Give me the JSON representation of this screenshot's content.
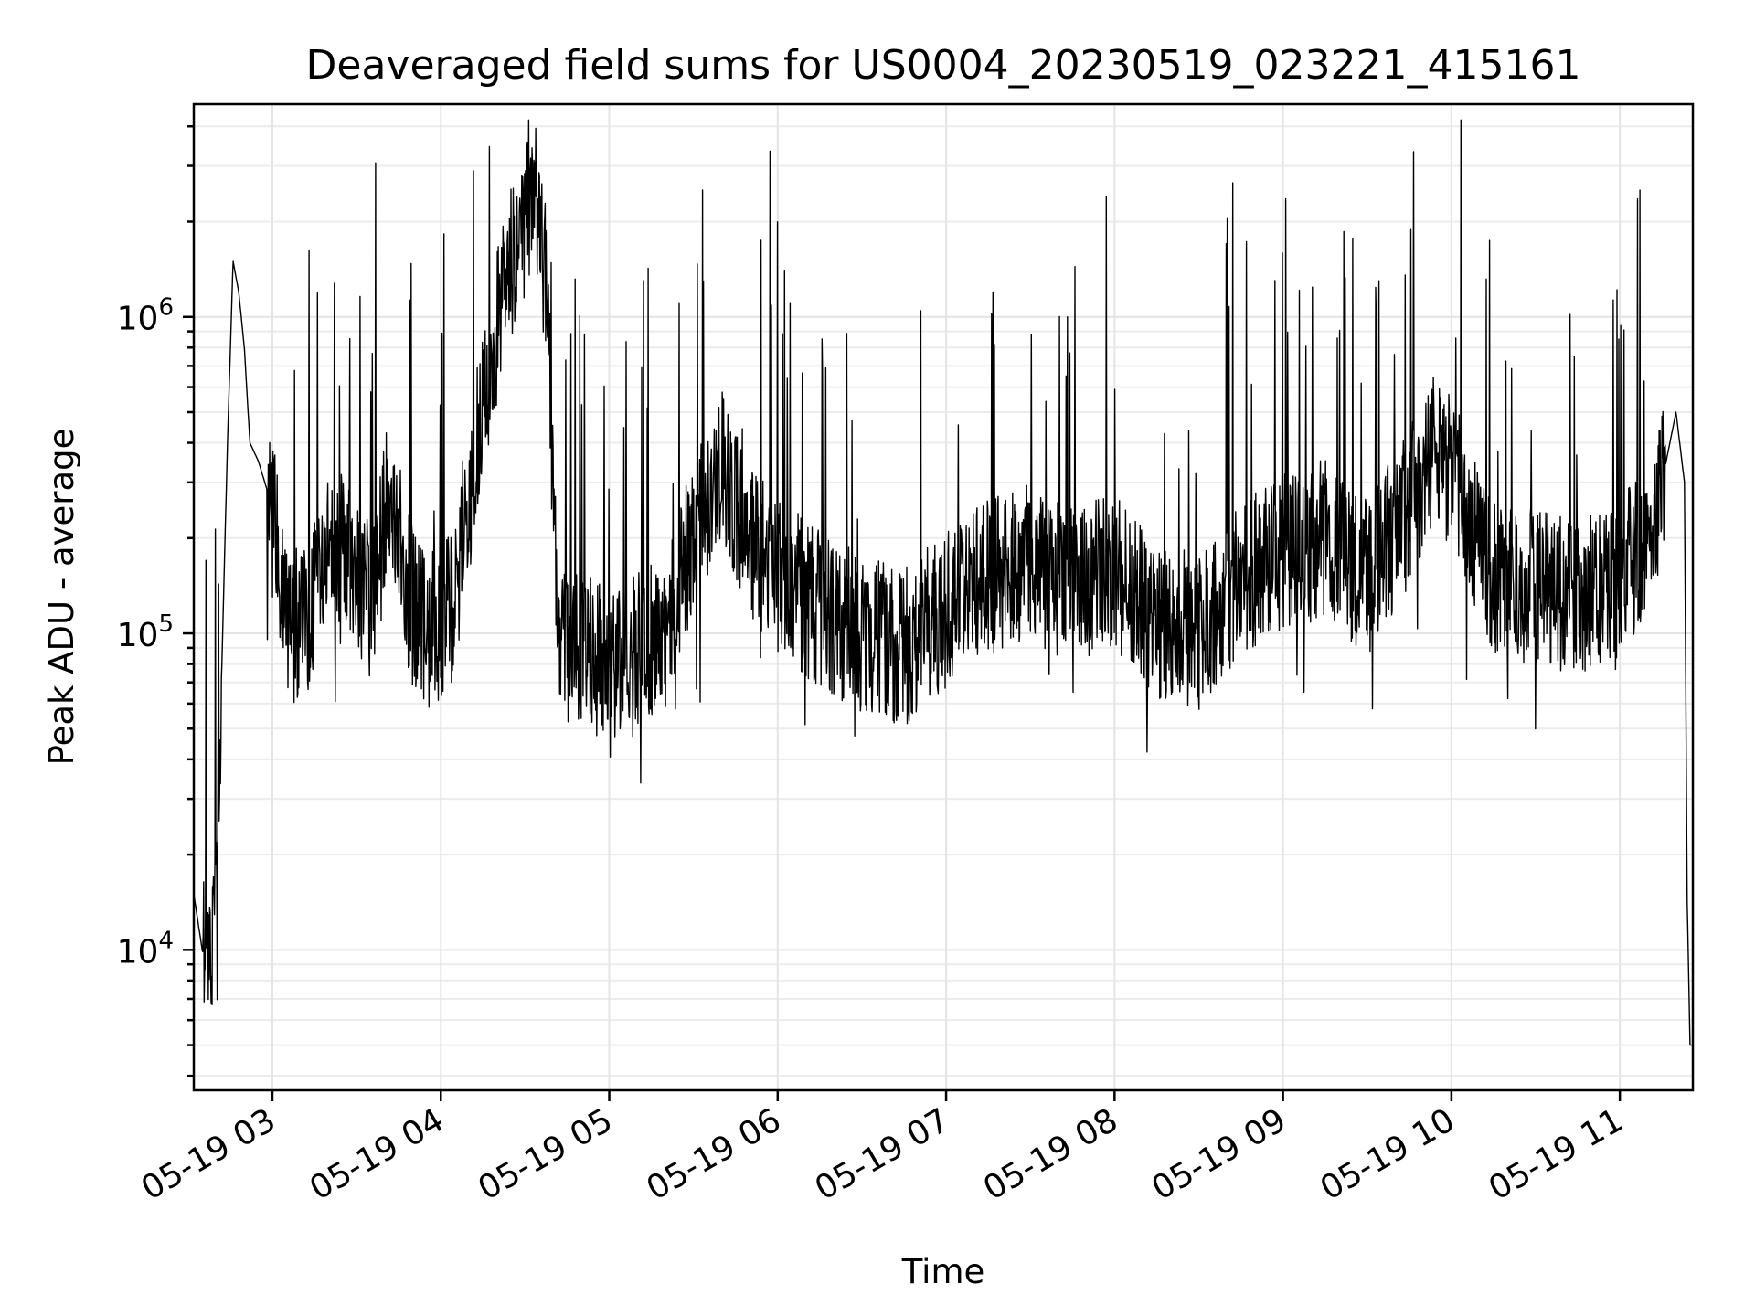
{
  "chart_data": {
    "type": "line",
    "title": "Deaveraged field sums for US0004_20230519_023221_415161",
    "xlabel": "Time",
    "ylabel": "Peak ADU - average",
    "x_range": [
      "2023-05-19 02:32",
      "2023-05-19 11:26"
    ],
    "ylim": [
      3600,
      4700000
    ],
    "y_scale": "log",
    "grid": true,
    "x_ticks": [
      "05-19 03",
      "05-19 04",
      "05-19 05",
      "05-19 06",
      "05-19 07",
      "05-19 08",
      "05-19 09",
      "05-19 10",
      "05-19 11"
    ],
    "y_ticks": [
      {
        "value": 10000,
        "base": "10",
        "exp": "4"
      },
      {
        "value": 100000,
        "base": "10",
        "exp": "5"
      },
      {
        "value": 1000000,
        "base": "10",
        "exp": "6"
      }
    ],
    "series": [
      {
        "line_color": "#000000",
        "x": [
          "2023-05-19 02:32",
          "2023-05-19 02:35",
          "2023-05-19 02:38",
          "2023-05-19 02:40",
          "2023-05-19 02:42",
          "2023-05-19 02:44",
          "2023-05-19 02:46",
          "2023-05-19 02:48",
          "2023-05-19 02:50",
          "2023-05-19 02:52",
          "2023-05-19 02:55",
          "2023-05-19 03:00",
          "2023-05-19 03:05",
          "2023-05-19 03:10",
          "2023-05-19 03:15",
          "2023-05-19 03:20",
          "2023-05-19 03:25",
          "2023-05-19 03:30",
          "2023-05-19 03:35",
          "2023-05-19 03:40",
          "2023-05-19 03:45",
          "2023-05-19 03:50",
          "2023-05-19 03:55",
          "2023-05-19 04:00",
          "2023-05-19 04:05",
          "2023-05-19 04:10",
          "2023-05-19 04:15",
          "2023-05-19 04:20",
          "2023-05-19 04:25",
          "2023-05-19 04:30",
          "2023-05-19 04:35",
          "2023-05-19 04:38",
          "2023-05-19 04:42",
          "2023-05-19 04:50",
          "2023-05-19 05:00",
          "2023-05-19 05:10",
          "2023-05-19 05:20",
          "2023-05-19 05:30",
          "2023-05-19 05:40",
          "2023-05-19 05:50",
          "2023-05-19 06:00",
          "2023-05-19 06:15",
          "2023-05-19 06:30",
          "2023-05-19 06:45",
          "2023-05-19 07:00",
          "2023-05-19 07:15",
          "2023-05-19 07:30",
          "2023-05-19 07:45",
          "2023-05-19 08:00",
          "2023-05-19 08:15",
          "2023-05-19 08:30",
          "2023-05-19 08:45",
          "2023-05-19 09:00",
          "2023-05-19 09:15",
          "2023-05-19 09:30",
          "2023-05-19 09:45",
          "2023-05-19 09:55",
          "2023-05-19 10:05",
          "2023-05-19 10:15",
          "2023-05-19 10:30",
          "2023-05-19 10:45",
          "2023-05-19 11:00",
          "2023-05-19 11:10",
          "2023-05-19 11:15",
          "2023-05-19 11:20",
          "2023-05-19 11:23",
          "2023-05-19 11:24",
          "2023-05-19 11:25"
        ],
        "y": [
          15000,
          10000,
          8000,
          20000,
          80000,
          400000,
          1500000,
          1200000,
          800000,
          400000,
          350000,
          250000,
          120000,
          100000,
          130000,
          200000,
          180000,
          160000,
          120000,
          250000,
          200000,
          120000,
          100000,
          110000,
          120000,
          300000,
          500000,
          900000,
          1500000,
          2000000,
          2500000,
          1000000,
          90000,
          90000,
          80000,
          90000,
          100000,
          200000,
          350000,
          200000,
          150000,
          120000,
          100000,
          90000,
          120000,
          150000,
          170000,
          140000,
          160000,
          110000,
          100000,
          150000,
          180000,
          200000,
          150000,
          250000,
          400000,
          250000,
          150000,
          140000,
          130000,
          150000,
          200000,
          300000,
          500000,
          300000,
          14000,
          5000
        ]
      }
    ]
  }
}
